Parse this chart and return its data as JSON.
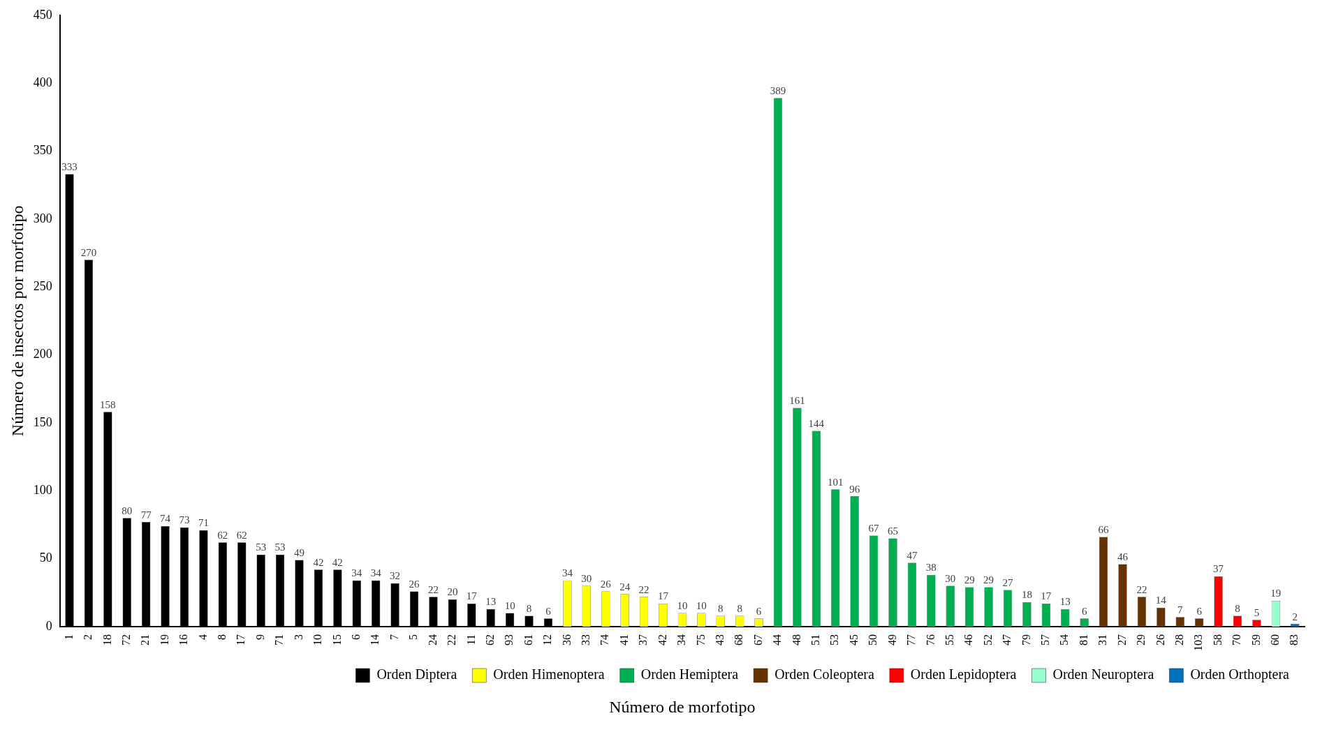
{
  "chart_data": {
    "type": "bar",
    "xlabel": "Número de morfotipo",
    "ylabel": "Número de insectos por morfotipo",
    "categories": [
      "1",
      "2",
      "18",
      "72",
      "21",
      "19",
      "16",
      "4",
      "8",
      "17",
      "9",
      "71",
      "3",
      "10",
      "15",
      "6",
      "14",
      "7",
      "5",
      "24",
      "22",
      "11",
      "62",
      "93",
      "61",
      "12",
      "36",
      "33",
      "74",
      "41",
      "37",
      "42",
      "34",
      "75",
      "43",
      "68",
      "67",
      "44",
      "48",
      "51",
      "53",
      "45",
      "50",
      "49",
      "77",
      "76",
      "55",
      "46",
      "52",
      "47",
      "79",
      "57",
      "54",
      "81",
      "31",
      "27",
      "29",
      "26",
      "28",
      "103",
      "58",
      "70",
      "59",
      "60",
      "83"
    ],
    "series": [
      {
        "name": "Orden Diptera",
        "color": "#000000",
        "values": [
          333,
          270,
          158,
          80,
          77,
          74,
          73,
          71,
          62,
          62,
          53,
          53,
          49,
          42,
          42,
          34,
          34,
          32,
          26,
          22,
          20,
          17,
          13,
          10,
          8,
          6,
          null,
          null,
          null,
          null,
          null,
          null,
          null,
          null,
          null,
          null,
          null,
          null,
          null,
          null,
          null,
          null,
          null,
          null,
          null,
          null,
          null,
          null,
          null,
          null,
          null,
          null,
          null,
          null,
          null,
          null,
          null,
          null,
          null,
          null,
          null,
          null,
          null,
          null,
          null
        ]
      },
      {
        "name": "Orden Himenoptera",
        "color": "#ffff00",
        "values": [
          null,
          null,
          null,
          null,
          null,
          null,
          null,
          null,
          null,
          null,
          null,
          null,
          null,
          null,
          null,
          null,
          null,
          null,
          null,
          null,
          null,
          null,
          null,
          null,
          null,
          null,
          34,
          30,
          26,
          24,
          22,
          17,
          10,
          10,
          8,
          8,
          6,
          null,
          null,
          null,
          null,
          null,
          null,
          null,
          null,
          null,
          null,
          null,
          null,
          null,
          null,
          null,
          null,
          null,
          null,
          null,
          null,
          null,
          null,
          null,
          null,
          null,
          null,
          null,
          null
        ]
      },
      {
        "name": "Orden Hemiptera",
        "color": "#00b050",
        "values": [
          null,
          null,
          null,
          null,
          null,
          null,
          null,
          null,
          null,
          null,
          null,
          null,
          null,
          null,
          null,
          null,
          null,
          null,
          null,
          null,
          null,
          null,
          null,
          null,
          null,
          null,
          null,
          null,
          null,
          null,
          null,
          null,
          null,
          null,
          null,
          null,
          null,
          389,
          161,
          144,
          101,
          96,
          67,
          65,
          47,
          38,
          30,
          29,
          29,
          27,
          18,
          17,
          13,
          6,
          null,
          null,
          null,
          null,
          null,
          null,
          null,
          null,
          null,
          null,
          null
        ]
      },
      {
        "name": "Orden Coleoptera",
        "color": "#663300",
        "values": [
          null,
          null,
          null,
          null,
          null,
          null,
          null,
          null,
          null,
          null,
          null,
          null,
          null,
          null,
          null,
          null,
          null,
          null,
          null,
          null,
          null,
          null,
          null,
          null,
          null,
          null,
          null,
          null,
          null,
          null,
          null,
          null,
          null,
          null,
          null,
          null,
          null,
          null,
          null,
          null,
          null,
          null,
          null,
          null,
          null,
          null,
          null,
          null,
          null,
          null,
          null,
          null,
          null,
          null,
          66,
          46,
          22,
          14,
          7,
          6,
          null,
          null,
          null,
          null,
          null
        ]
      },
      {
        "name": "Orden Lepidoptera",
        "color": "#ff0000",
        "values": [
          null,
          null,
          null,
          null,
          null,
          null,
          null,
          null,
          null,
          null,
          null,
          null,
          null,
          null,
          null,
          null,
          null,
          null,
          null,
          null,
          null,
          null,
          null,
          null,
          null,
          null,
          null,
          null,
          null,
          null,
          null,
          null,
          null,
          null,
          null,
          null,
          null,
          null,
          null,
          null,
          null,
          null,
          null,
          null,
          null,
          null,
          null,
          null,
          null,
          null,
          null,
          null,
          null,
          null,
          null,
          null,
          null,
          null,
          null,
          null,
          37,
          8,
          5,
          null,
          null
        ]
      },
      {
        "name": "Orden Neuroptera",
        "color": "#99ffcc",
        "values": [
          null,
          null,
          null,
          null,
          null,
          null,
          null,
          null,
          null,
          null,
          null,
          null,
          null,
          null,
          null,
          null,
          null,
          null,
          null,
          null,
          null,
          null,
          null,
          null,
          null,
          null,
          null,
          null,
          null,
          null,
          null,
          null,
          null,
          null,
          null,
          null,
          null,
          null,
          null,
          null,
          null,
          null,
          null,
          null,
          null,
          null,
          null,
          null,
          null,
          null,
          null,
          null,
          null,
          null,
          null,
          null,
          null,
          null,
          null,
          null,
          null,
          null,
          null,
          19,
          null
        ]
      },
      {
        "name": "Orden Orthoptera",
        "color": "#0070c0",
        "values": [
          null,
          null,
          null,
          null,
          null,
          null,
          null,
          null,
          null,
          null,
          null,
          null,
          null,
          null,
          null,
          null,
          null,
          null,
          null,
          null,
          null,
          null,
          null,
          null,
          null,
          null,
          null,
          null,
          null,
          null,
          null,
          null,
          null,
          null,
          null,
          null,
          null,
          null,
          null,
          null,
          null,
          null,
          null,
          null,
          null,
          null,
          null,
          null,
          null,
          null,
          null,
          null,
          null,
          null,
          null,
          null,
          null,
          null,
          null,
          null,
          null,
          null,
          null,
          null,
          2
        ]
      }
    ],
    "ylim": [
      0,
      450
    ],
    "yticks": [
      0,
      50,
      100,
      150,
      200,
      250,
      300,
      350,
      400,
      450
    ],
    "grid": false,
    "legend": "bottom",
    "data_labels": true
  }
}
